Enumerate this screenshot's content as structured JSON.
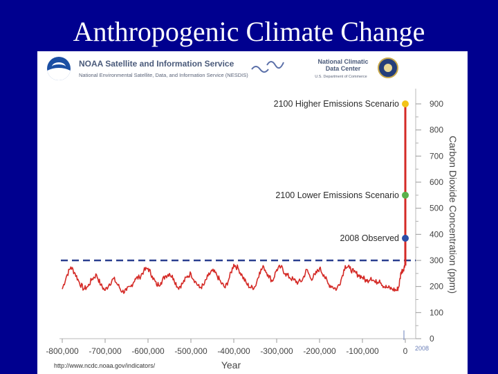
{
  "slide": {
    "title": "Anthropogenic Climate Change"
  },
  "header": {
    "noaa_name": "NOAA Satellite and Information Service",
    "noaa_subtitle": "National Environmental Satellite, Data, and Information Service (NESDIS)",
    "ncdc_line1": "National Climatic",
    "ncdc_line2": "Data Center",
    "ncdc_dept": "U.S. Department of Commerce",
    "logo_icon": "noaa-logo-icon",
    "seal_icon": "commerce-seal-icon"
  },
  "source_url": "http://www.ncdc.noaa.gov/indicators/",
  "chart_data": {
    "type": "line",
    "xlabel": "Year",
    "ylabel": "Carbon Dioxide Concentration (ppm)",
    "xlim": [
      -800000,
      0
    ],
    "ylim": [
      0,
      900
    ],
    "x_ticks": [
      -800000,
      -700000,
      -600000,
      -500000,
      -400000,
      -300000,
      -200000,
      -100000,
      0
    ],
    "x_tick_labels": [
      "-800,000",
      "-700,000",
      "-600,000",
      "-500,000",
      "-400,000",
      "-300,000",
      "-200,000",
      "-100,000",
      "0"
    ],
    "y_ticks": [
      0,
      100,
      200,
      300,
      400,
      500,
      600,
      700,
      800,
      900
    ],
    "y_tick_labels": [
      "0",
      "100",
      "200",
      "300",
      "400",
      "500",
      "600",
      "700",
      "800",
      "900"
    ],
    "grid": false,
    "series": [
      {
        "color": "#d42a26",
        "x": [
          -800000,
          -790000,
          -780000,
          -770000,
          -760000,
          -750000,
          -740000,
          -730000,
          -720000,
          -710000,
          -700000,
          -690000,
          -680000,
          -670000,
          -660000,
          -650000,
          -640000,
          -630000,
          -620000,
          -610000,
          -600000,
          -590000,
          -580000,
          -570000,
          -560000,
          -550000,
          -540000,
          -530000,
          -520000,
          -510000,
          -500000,
          -490000,
          -480000,
          -470000,
          -460000,
          -450000,
          -440000,
          -430000,
          -420000,
          -410000,
          -400000,
          -390000,
          -380000,
          -370000,
          -360000,
          -350000,
          -340000,
          -330000,
          -320000,
          -310000,
          -300000,
          -290000,
          -280000,
          -270000,
          -260000,
          -250000,
          -240000,
          -230000,
          -220000,
          -210000,
          -200000,
          -190000,
          -180000,
          -170000,
          -160000,
          -150000,
          -140000,
          -130000,
          -120000,
          -110000,
          -100000,
          -90000,
          -80000,
          -70000,
          -60000,
          -50000,
          -40000,
          -30000,
          -20000,
          -15000,
          -10000,
          -5000,
          -1000
        ],
        "y": [
          190,
          240,
          275,
          250,
          215,
          190,
          200,
          230,
          245,
          205,
          185,
          210,
          230,
          205,
          180,
          185,
          200,
          230,
          235,
          260,
          270,
          240,
          205,
          215,
          240,
          250,
          230,
          195,
          210,
          235,
          250,
          220,
          195,
          205,
          240,
          260,
          245,
          215,
          195,
          235,
          285,
          270,
          240,
          210,
          195,
          200,
          255,
          275,
          245,
          220,
          265,
          275,
          250,
          235,
          225,
          215,
          225,
          265,
          230,
          245,
          270,
          245,
          210,
          200,
          190,
          225,
          280,
          270,
          255,
          245,
          235,
          220,
          235,
          215,
          225,
          200,
          195,
          190,
          185,
          200,
          255,
          265,
          280
        ]
      }
    ],
    "reference_line": {
      "y": 300,
      "style": "dashed",
      "color": "#2a3f8f"
    },
    "projection_line": {
      "x": 0,
      "from_y": 280,
      "to_y": 900,
      "color": "#d42a26"
    },
    "annotations": [
      {
        "label": "2100 Higher Emissions Scenario",
        "x": 0,
        "y": 900,
        "color": "#f2c318"
      },
      {
        "label": "2100 Lower Emissions Scenario",
        "x": 0,
        "y": 550,
        "color": "#5bb04a"
      },
      {
        "label": "2008 Observed",
        "x": 0,
        "y": 385,
        "color": "#2b4fa8"
      }
    ],
    "marker_note": "2008"
  }
}
